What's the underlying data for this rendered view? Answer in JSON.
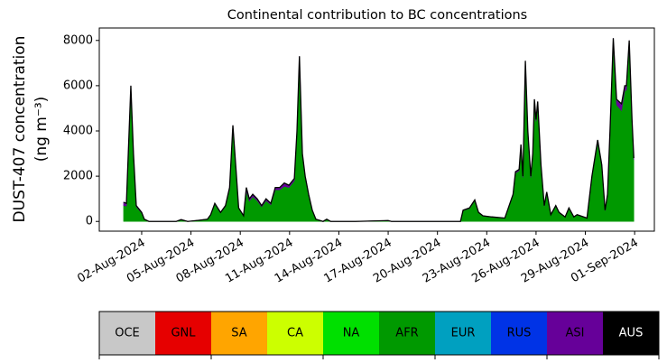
{
  "chart_data": {
    "type": "stacked_area",
    "title": "Continental contribution to BC concentrations",
    "ylabel": [
      "DUST-407 concentration",
      "(ng m⁻³)"
    ],
    "xlim": [
      -0.58,
      33.2
    ],
    "xticks": [
      {
        "value": 2,
        "label": "02-Aug-2024"
      },
      {
        "value": 5,
        "label": "05-Aug-2024"
      },
      {
        "value": 8,
        "label": "08-Aug-2024"
      },
      {
        "value": 11,
        "label": "11-Aug-2024"
      },
      {
        "value": 14,
        "label": "14-Aug-2024"
      },
      {
        "value": 17,
        "label": "17-Aug-2024"
      },
      {
        "value": 20,
        "label": "20-Aug-2024"
      },
      {
        "value": 23,
        "label": "23-Aug-2024"
      },
      {
        "value": 26,
        "label": "26-Aug-2024"
      },
      {
        "value": 29,
        "label": "29-Aug-2024"
      },
      {
        "value": 32,
        "label": "01-Sep-2024"
      }
    ],
    "ylim": [
      -430,
      8550
    ],
    "yticks": [
      0,
      2000,
      4000,
      6000,
      8000
    ],
    "x": [
      0.9,
      1.07,
      1.34,
      1.5,
      1.67,
      2.0,
      2.16,
      2.44,
      3.0,
      4.1,
      4.4,
      4.8,
      5.46,
      6.0,
      6.2,
      6.45,
      6.8,
      7.1,
      7.35,
      7.55,
      7.77,
      7.9,
      8.2,
      8.37,
      8.55,
      8.76,
      9.03,
      9.3,
      9.57,
      9.86,
      10.13,
      10.4,
      10.68,
      10.96,
      11.29,
      11.45,
      11.6,
      11.78,
      11.95,
      12.16,
      12.38,
      12.6,
      13.04,
      13.26,
      13.5,
      15.0,
      17.0,
      17.2,
      19.0,
      21.0,
      21.4,
      21.56,
      21.95,
      22.27,
      22.5,
      22.77,
      23.3,
      24.1,
      24.6,
      24.75,
      24.97,
      25.08,
      25.2,
      25.35,
      25.5,
      25.68,
      25.8,
      25.9,
      26.0,
      26.1,
      26.3,
      26.5,
      26.65,
      26.9,
      27.2,
      27.4,
      27.77,
      28.0,
      28.3,
      28.5,
      29.1,
      29.4,
      29.75,
      30.0,
      30.2,
      30.35,
      30.5,
      30.7,
      30.9,
      31.2,
      31.4,
      31.5,
      31.67,
      31.84,
      31.95
    ],
    "series": [
      {
        "name": "AFR",
        "color": "#009900",
        "values": [
          700,
          680,
          5750,
          2900,
          650,
          370,
          100,
          0,
          0,
          0,
          80,
          0,
          50,
          100,
          300,
          770,
          380,
          670,
          1440,
          4150,
          1940,
          580,
          240,
          1350,
          900,
          1100,
          920,
          650,
          920,
          740,
          1400,
          1400,
          1550,
          1500,
          1800,
          3880,
          7150,
          2900,
          1940,
          1160,
          480,
          100,
          0,
          100,
          0,
          0,
          40,
          0,
          0,
          0,
          0,
          480,
          580,
          920,
          390,
          240,
          190,
          140,
          1160,
          2140,
          2240,
          3320,
          1940,
          7000,
          3920,
          1940,
          2920,
          5300,
          4420,
          5200,
          2440,
          680,
          1270,
          290,
          680,
          390,
          190,
          580,
          190,
          290,
          140,
          1940,
          3500,
          2440,
          480,
          1160,
          3880,
          7850,
          5150,
          4900,
          5800,
          5800,
          7850,
          4400,
          2720
        ]
      },
      {
        "name": "ASI",
        "color": "#660099",
        "values": [
          150,
          120,
          250,
          100,
          50,
          30,
          0,
          0,
          0,
          0,
          0,
          0,
          0,
          0,
          0,
          30,
          20,
          30,
          60,
          100,
          60,
          20,
          10,
          150,
          100,
          100,
          80,
          50,
          80,
          60,
          100,
          100,
          150,
          100,
          100,
          120,
          150,
          100,
          60,
          40,
          20,
          0,
          0,
          0,
          0,
          0,
          0,
          0,
          0,
          0,
          0,
          20,
          20,
          30,
          10,
          10,
          10,
          10,
          40,
          60,
          60,
          80,
          60,
          100,
          80,
          60,
          80,
          100,
          80,
          100,
          60,
          20,
          30,
          10,
          20,
          10,
          10,
          20,
          10,
          10,
          10,
          60,
          100,
          60,
          20,
          40,
          120,
          250,
          250,
          300,
          200,
          200,
          150,
          100,
          80
        ]
      }
    ],
    "colorbar": {
      "labels": [
        "OCE",
        "GNL",
        "SA",
        "CA",
        "NA",
        "AFR",
        "EUR",
        "RUS",
        "ASI",
        "AUS"
      ],
      "colors": [
        "#c8c8c8",
        "#e60000",
        "#ffa500",
        "#ccff00",
        "#00e000",
        "#009900",
        "#00a0c0",
        "#0033e6",
        "#660099",
        "#000000"
      ],
      "text_colors": [
        "#000000",
        "#000000",
        "#000000",
        "#000000",
        "#000000",
        "#000000",
        "#000000",
        "#000000",
        "#000000",
        "#ffffff"
      ]
    }
  }
}
